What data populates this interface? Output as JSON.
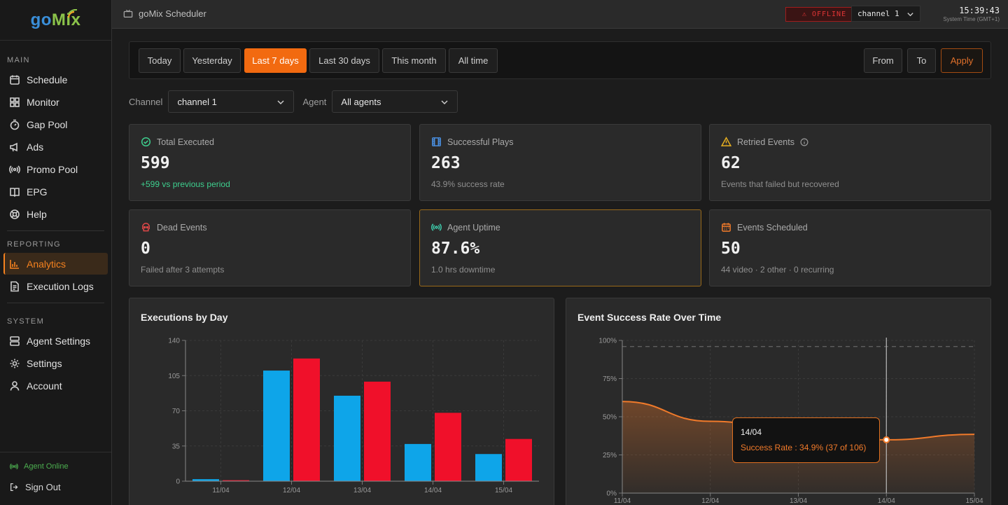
{
  "logo": {
    "part1": "go",
    "part2": "Mix"
  },
  "sidebar": {
    "sections": {
      "main": "MAIN",
      "reporting": "REPORTING",
      "system": "SYSTEM"
    },
    "main_items": [
      {
        "label": "Schedule",
        "icon": "calendar-icon"
      },
      {
        "label": "Monitor",
        "icon": "grid-icon"
      },
      {
        "label": "Gap Pool",
        "icon": "timer-icon"
      },
      {
        "label": "Ads",
        "icon": "megaphone-icon"
      },
      {
        "label": "Promo Pool",
        "icon": "broadcast-icon"
      },
      {
        "label": "EPG",
        "icon": "book-icon"
      },
      {
        "label": "Help",
        "icon": "lifebuoy-icon"
      }
    ],
    "reporting_items": [
      {
        "label": "Analytics",
        "icon": "bar-chart-icon",
        "active": true
      },
      {
        "label": "Execution Logs",
        "icon": "document-icon"
      }
    ],
    "system_items": [
      {
        "label": "Agent Settings",
        "icon": "server-icon"
      },
      {
        "label": "Settings",
        "icon": "gear-icon"
      },
      {
        "label": "Account",
        "icon": "user-icon"
      }
    ],
    "status": "Agent Online",
    "signout": "Sign Out"
  },
  "topbar": {
    "title": "goMix Scheduler",
    "offline_badge": "⚠ OFFLINE",
    "channel": "channel 1",
    "time": "15:39:43",
    "time_label": "System Time (GMT+1)"
  },
  "filters": {
    "ranges": [
      "Today",
      "Yesterday",
      "Last 7 days",
      "Last 30 days",
      "This month",
      "All time"
    ],
    "active_range": "Last 7 days",
    "from": "From",
    "to": "To",
    "apply": "Apply",
    "channel_label": "Channel",
    "channel_value": "channel 1",
    "agent_label": "Agent",
    "agent_value": "All agents"
  },
  "cards": [
    {
      "title": "Total Executed",
      "value": "599",
      "sub": "+599 vs previous period",
      "icon": "check-circle-icon",
      "color": "#3ecf8e"
    },
    {
      "title": "Successful Plays",
      "value": "263",
      "sub": "43.9% success rate",
      "icon": "film-icon",
      "color": "#4a90e2"
    },
    {
      "title": "Retried Events",
      "value": "62",
      "sub": "Events that failed but recovered",
      "icon": "warning-icon",
      "color": "#e8b020"
    },
    {
      "title": "Dead Events",
      "value": "0",
      "sub": "Failed after 3 attempts",
      "icon": "skull-icon",
      "color": "#e04848"
    },
    {
      "title": "Agent Uptime",
      "value": "87.6%",
      "sub": "1.0 hrs downtime",
      "icon": "signal-icon",
      "color": "#3ecfae"
    },
    {
      "title": "Events Scheduled",
      "value": "50",
      "sub": "44 video · 2 other · 0 recurring",
      "icon": "calendar-icon",
      "color": "#f07a2a"
    }
  ],
  "chart_data": [
    {
      "type": "bar",
      "title": "Executions by Day",
      "categories": [
        "11/04",
        "12/04",
        "13/04",
        "14/04",
        "15/04"
      ],
      "series": [
        {
          "values": [
            2,
            110,
            85,
            37,
            27
          ],
          "color": "#0ea5e9"
        },
        {
          "values": [
            1,
            122,
            99,
            68,
            42
          ],
          "color": "#f0102a"
        }
      ],
      "yticks": [
        "0",
        "35",
        "70",
        "105",
        "140"
      ],
      "ylim": [
        0,
        140
      ],
      "grid": true
    },
    {
      "type": "area",
      "title": "Event Success Rate Over Time",
      "categories": [
        "11/04",
        "12/04",
        "13/04",
        "14/04",
        "15/04"
      ],
      "values": [
        60,
        47,
        41,
        34.9,
        38.5
      ],
      "yticks": [
        "0%",
        "25%",
        "50%",
        "75%",
        "100%"
      ],
      "ylim": [
        0,
        100
      ],
      "reference_line": 96,
      "color": "#f07a2a",
      "tooltip": {
        "date": "14/04",
        "text": "Success Rate : 34.9% (37 of 106)"
      }
    }
  ]
}
